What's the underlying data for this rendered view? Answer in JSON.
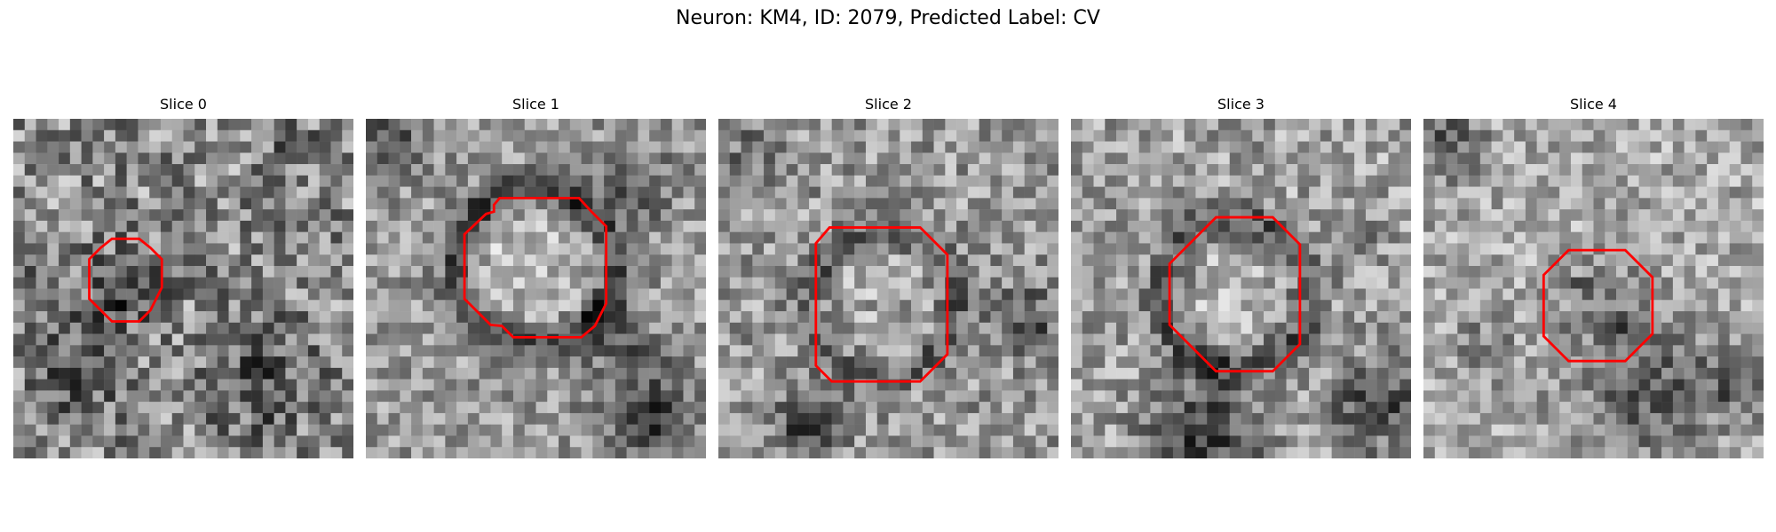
{
  "figure": {
    "title": "Neuron: KM4, ID: 2079, Predicted Label: CV"
  },
  "panels": [
    {
      "title": "Slice 0"
    },
    {
      "title": "Slice 1"
    },
    {
      "title": "Slice 2"
    },
    {
      "title": "Slice 3"
    },
    {
      "title": "Slice 4"
    }
  ],
  "colors": {
    "contour": "#ff0000",
    "background": "#ffffff"
  }
}
